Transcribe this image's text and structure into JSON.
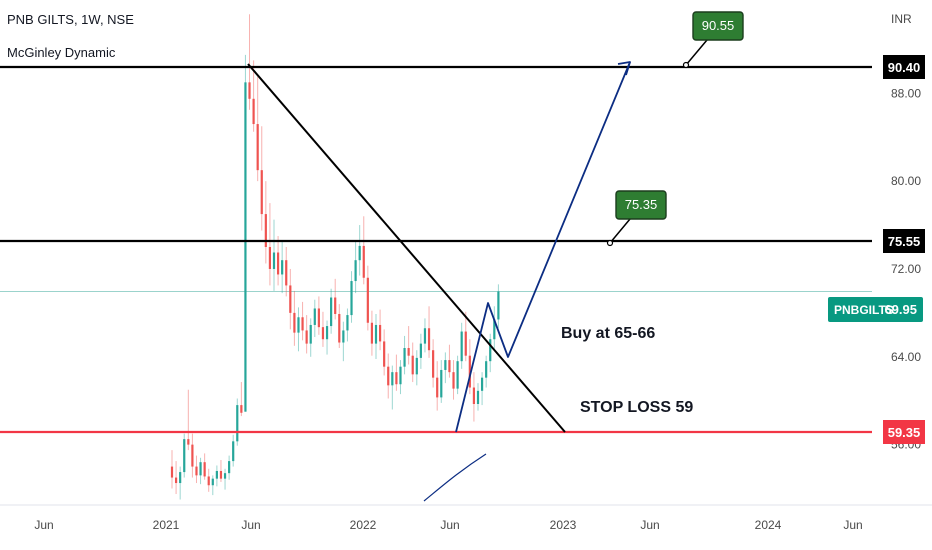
{
  "header": {
    "symbol_line": "PNB GILTS, 1W, NSE",
    "indicator": "McGinley Dynamic"
  },
  "currency": "INR",
  "colors": {
    "up": "#26a69a",
    "down": "#ef5350",
    "support": "#f23645",
    "ticker_badge": "#089981",
    "callout": "#2e7d32",
    "projection": "#0c2d83",
    "black": "#000000"
  },
  "chart_data": {
    "type": "candlestick",
    "title": "PNB GILTS, 1W, NSE",
    "currency": "INR",
    "x_ticks": [
      "Jun",
      "2021",
      "Jun",
      "2022",
      "Jun",
      "2023",
      "Jun",
      "2024",
      "Jun"
    ],
    "y_ticks": [
      "88.00",
      "80.00",
      "72.00",
      "64.00",
      "56.00"
    ],
    "ylim": [
      50.5,
      96.5
    ],
    "last_price": 69.95,
    "ticker_label": "PNBGILTS",
    "ticker_value": "69.95",
    "levels": [
      {
        "name": "resistance",
        "value": 90.4,
        "label": "90.40"
      },
      {
        "name": "resistance",
        "value": 75.55,
        "label": "75.55"
      },
      {
        "name": "support",
        "value": 59.35,
        "label": "59.35"
      }
    ],
    "callouts": [
      {
        "label": "90.55",
        "value": 90.55
      },
      {
        "label": "75.35",
        "value": 75.35
      }
    ],
    "annotations": [
      "Buy at 65-66",
      "STOP LOSS 59"
    ],
    "candles": [
      {
        "o": 54,
        "h": 55.5,
        "l": 52,
        "c": 53
      },
      {
        "o": 53,
        "h": 54.5,
        "l": 51.5,
        "c": 52.5
      },
      {
        "o": 52.5,
        "h": 54,
        "l": 51,
        "c": 53.5
      },
      {
        "o": 53.5,
        "h": 57,
        "l": 53,
        "c": 56.5
      },
      {
        "o": 56.5,
        "h": 61,
        "l": 55.5,
        "c": 56
      },
      {
        "o": 56,
        "h": 57,
        "l": 53,
        "c": 54
      },
      {
        "o": 54,
        "h": 55,
        "l": 52.5,
        "c": 53.2
      },
      {
        "o": 53.2,
        "h": 54.8,
        "l": 52.4,
        "c": 54.4
      },
      {
        "o": 54.4,
        "h": 55.2,
        "l": 52.8,
        "c": 53.1
      },
      {
        "o": 53.1,
        "h": 53.8,
        "l": 51.7,
        "c": 52.3
      },
      {
        "o": 52.3,
        "h": 53.2,
        "l": 51.4,
        "c": 52.9
      },
      {
        "o": 52.9,
        "h": 54.1,
        "l": 52.2,
        "c": 53.6
      },
      {
        "o": 53.6,
        "h": 54.6,
        "l": 52.6,
        "c": 52.9
      },
      {
        "o": 52.9,
        "h": 53.8,
        "l": 51.9,
        "c": 53.4
      },
      {
        "o": 53.4,
        "h": 55,
        "l": 52.8,
        "c": 54.5
      },
      {
        "o": 54.5,
        "h": 56.9,
        "l": 54,
        "c": 56.3
      },
      {
        "o": 56.3,
        "h": 60.2,
        "l": 55.9,
        "c": 59.6
      },
      {
        "o": 59.6,
        "h": 61.7,
        "l": 58.6,
        "c": 58.9
      },
      {
        "o": 59,
        "h": 91.5,
        "l": 59,
        "c": 89
      },
      {
        "o": 89,
        "h": 95.2,
        "l": 86.5,
        "c": 87.5
      },
      {
        "o": 87.5,
        "h": 91,
        "l": 84.5,
        "c": 85.2
      },
      {
        "o": 85.2,
        "h": 89.5,
        "l": 80,
        "c": 81
      },
      {
        "o": 81,
        "h": 85,
        "l": 75.5,
        "c": 77
      },
      {
        "o": 77,
        "h": 80,
        "l": 72.5,
        "c": 74
      },
      {
        "o": 74,
        "h": 78,
        "l": 70.5,
        "c": 72
      },
      {
        "o": 72,
        "h": 76.5,
        "l": 70,
        "c": 73.5
      },
      {
        "o": 73.5,
        "h": 75,
        "l": 70.5,
        "c": 71.5
      },
      {
        "o": 71.5,
        "h": 74.5,
        "l": 69.8,
        "c": 72.8
      },
      {
        "o": 72.8,
        "h": 74,
        "l": 69.5,
        "c": 70.5
      },
      {
        "o": 70.5,
        "h": 72,
        "l": 66.5,
        "c": 68
      },
      {
        "o": 68,
        "h": 70,
        "l": 65,
        "c": 66.2
      },
      {
        "o": 66.2,
        "h": 68.5,
        "l": 64.5,
        "c": 67.6
      },
      {
        "o": 67.6,
        "h": 69,
        "l": 65.5,
        "c": 66.4
      },
      {
        "o": 66.4,
        "h": 67.8,
        "l": 64.3,
        "c": 65.2
      },
      {
        "o": 65.2,
        "h": 67.5,
        "l": 64,
        "c": 66.9
      },
      {
        "o": 66.9,
        "h": 69.2,
        "l": 65.8,
        "c": 68.4
      },
      {
        "o": 68.4,
        "h": 69.5,
        "l": 66,
        "c": 66.7
      },
      {
        "o": 66.7,
        "h": 68.1,
        "l": 64.9,
        "c": 65.6
      },
      {
        "o": 65.6,
        "h": 67.3,
        "l": 64.2,
        "c": 66.8
      },
      {
        "o": 66.8,
        "h": 70.2,
        "l": 66.1,
        "c": 69.4
      },
      {
        "o": 69.4,
        "h": 71.1,
        "l": 67.4,
        "c": 67.9
      },
      {
        "o": 67.9,
        "h": 68.8,
        "l": 64.8,
        "c": 65.3
      },
      {
        "o": 65.3,
        "h": 67.2,
        "l": 63.6,
        "c": 66.4
      },
      {
        "o": 66.4,
        "h": 68.4,
        "l": 65.4,
        "c": 67.8
      },
      {
        "o": 67.8,
        "h": 71.8,
        "l": 67.1,
        "c": 70.9
      },
      {
        "o": 70.9,
        "h": 74.6,
        "l": 69.8,
        "c": 72.8
      },
      {
        "o": 72.8,
        "h": 76,
        "l": 71.4,
        "c": 74.1
      },
      {
        "o": 74.1,
        "h": 76.8,
        "l": 70.6,
        "c": 71.2
      },
      {
        "o": 71.2,
        "h": 72.3,
        "l": 66.4,
        "c": 67.1
      },
      {
        "o": 67.1,
        "h": 68.2,
        "l": 64.1,
        "c": 65.2
      },
      {
        "o": 65.2,
        "h": 67.9,
        "l": 63.8,
        "c": 66.9
      },
      {
        "o": 66.9,
        "h": 68.3,
        "l": 64.6,
        "c": 65.4
      },
      {
        "o": 65.4,
        "h": 66.5,
        "l": 62.3,
        "c": 63.1
      },
      {
        "o": 63.1,
        "h": 64.3,
        "l": 60.2,
        "c": 61.4
      },
      {
        "o": 61.4,
        "h": 63.2,
        "l": 59.2,
        "c": 62.6
      },
      {
        "o": 62.6,
        "h": 64.2,
        "l": 60.9,
        "c": 61.5
      },
      {
        "o": 61.5,
        "h": 63.7,
        "l": 60.6,
        "c": 63.1
      },
      {
        "o": 63.1,
        "h": 65.9,
        "l": 62.4,
        "c": 64.8
      },
      {
        "o": 64.8,
        "h": 66.8,
        "l": 63.3,
        "c": 64.1
      },
      {
        "o": 64.1,
        "h": 65.3,
        "l": 61.7,
        "c": 62.4
      },
      {
        "o": 62.4,
        "h": 64.6,
        "l": 61.4,
        "c": 63.9
      },
      {
        "o": 63.9,
        "h": 66.1,
        "l": 62.9,
        "c": 65.2
      },
      {
        "o": 65.2,
        "h": 67.5,
        "l": 64.4,
        "c": 66.6
      },
      {
        "o": 66.6,
        "h": 68.6,
        "l": 63.9,
        "c": 64.6
      },
      {
        "o": 64.6,
        "h": 65.6,
        "l": 61.2,
        "c": 62.1
      },
      {
        "o": 62.1,
        "h": 63.6,
        "l": 59.1,
        "c": 60.3
      },
      {
        "o": 60.3,
        "h": 63.7,
        "l": 59.8,
        "c": 62.8
      },
      {
        "o": 62.8,
        "h": 64.4,
        "l": 61.6,
        "c": 63.7
      },
      {
        "o": 63.7,
        "h": 65.1,
        "l": 62.1,
        "c": 62.6
      },
      {
        "o": 62.6,
        "h": 63.7,
        "l": 60.1,
        "c": 61.1
      },
      {
        "o": 61.1,
        "h": 64.1,
        "l": 60.6,
        "c": 63.6
      },
      {
        "o": 63.6,
        "h": 67.1,
        "l": 62.9,
        "c": 66.3
      },
      {
        "o": 66.3,
        "h": 68.1,
        "l": 63.6,
        "c": 64.1
      },
      {
        "o": 64.1,
        "h": 65.6,
        "l": 60.6,
        "c": 61.2
      },
      {
        "o": 61.2,
        "h": 62.6,
        "l": 58.1,
        "c": 59.7
      },
      {
        "o": 59.7,
        "h": 61.6,
        "l": 59.1,
        "c": 60.9
      },
      {
        "o": 60.9,
        "h": 62.6,
        "l": 59.6,
        "c": 62.1
      },
      {
        "o": 62.1,
        "h": 64.1,
        "l": 61.2,
        "c": 63.6
      },
      {
        "o": 63.6,
        "h": 66.1,
        "l": 62.6,
        "c": 65.6
      },
      {
        "o": 65.6,
        "h": 68.6,
        "l": 64.6,
        "c": 67.4
      },
      {
        "o": 67.4,
        "h": 70.6,
        "l": 66.6,
        "c": 69.95
      }
    ]
  }
}
